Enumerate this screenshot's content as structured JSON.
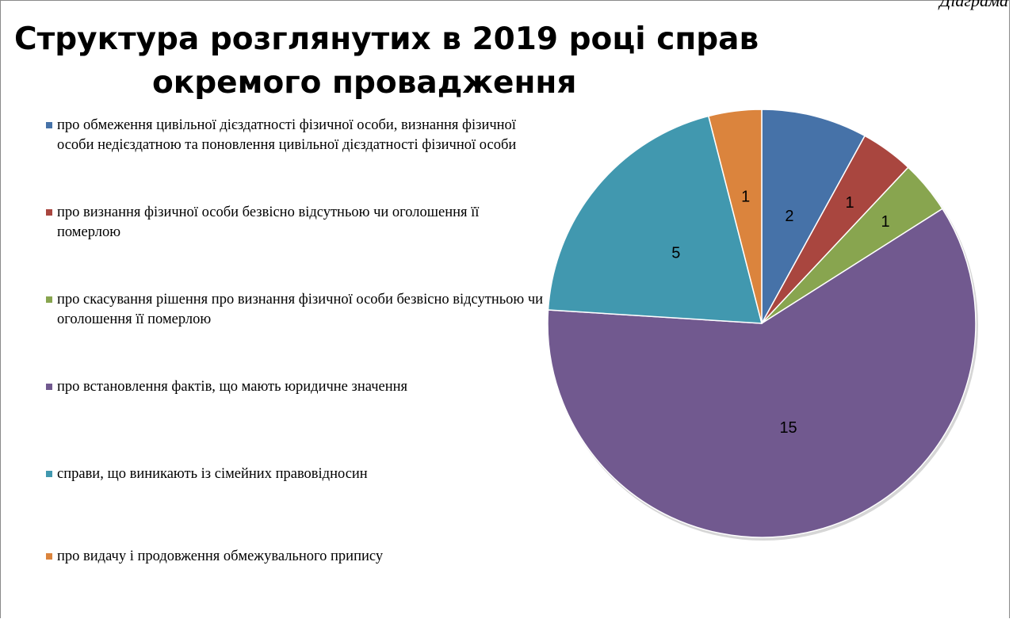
{
  "corner_label": "Діаграма",
  "chart_data": {
    "type": "pie",
    "title_lines": [
      "Структура розглянутих в 2019 році справ",
      "окремого провадження"
    ],
    "legend_position": "left",
    "slices": [
      {
        "label": "про обмеження цивільної дієздатності фізичної особи, визнання фізичної особи недієздатною та поновлення цивільної дієздатності фізичної особи",
        "value": 2,
        "color": "#4672a8",
        "data_label": "2"
      },
      {
        "label": "про визнання фізичної особи безвісно відсутньою чи оголошення її померлою",
        "value": 1,
        "color": "#a9463f",
        "data_label": "1"
      },
      {
        "label": "про скасування рішення про визнання фізичної особи безвісно відсутньою чи оголошення її померлою",
        "value": 1,
        "color": "#88a54f",
        "data_label": "1"
      },
      {
        "label": "про встановлення фактів, що мають юридичне значення",
        "value": 15,
        "color": "#71598f",
        "data_label": "15"
      },
      {
        "label": "справи, що виникають із сімейних правовідносин",
        "value": 5,
        "color": "#4198af",
        "data_label": "5"
      },
      {
        "label": "про видачу і продовження обмежувального припису",
        "value": 1,
        "color": "#db843d",
        "data_label": "1"
      }
    ]
  }
}
